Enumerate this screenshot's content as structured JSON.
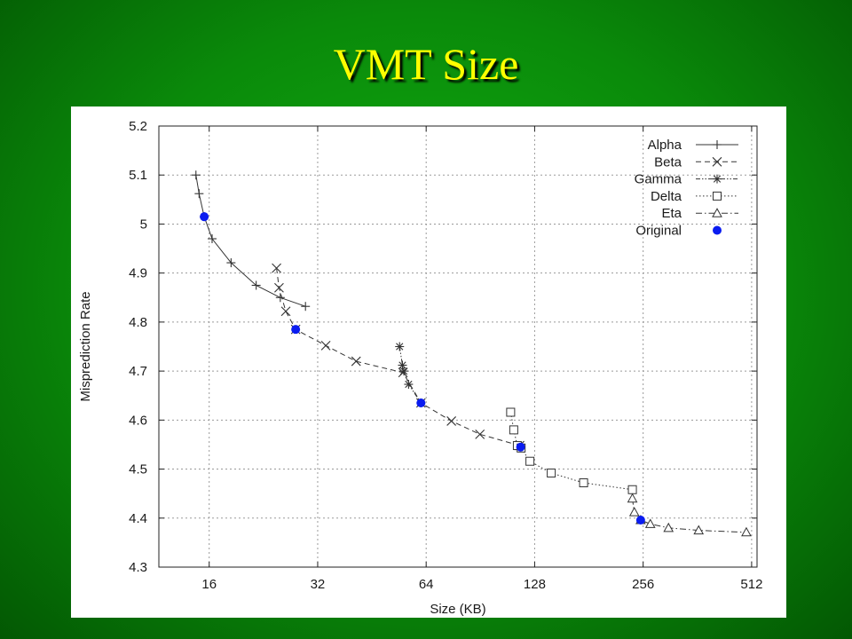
{
  "slide": {
    "title": "VMT Size"
  },
  "chart_data": {
    "type": "line",
    "title": "",
    "xlabel": "Size (KB)",
    "ylabel": "Misprediction Rate",
    "x_scale": "log2",
    "xlim": [
      11.6,
      530
    ],
    "ylim": [
      4.3,
      5.2
    ],
    "x_ticks": [
      {
        "value": 16,
        "label": "16"
      },
      {
        "value": 32,
        "label": "32"
      },
      {
        "value": 64,
        "label": "64"
      },
      {
        "value": 128,
        "label": "128"
      },
      {
        "value": 256,
        "label": "256"
      },
      {
        "value": 512,
        "label": "512"
      }
    ],
    "y_ticks": [
      {
        "value": 4.3,
        "label": "4.3"
      },
      {
        "value": 4.4,
        "label": "4.4"
      },
      {
        "value": 4.5,
        "label": "4.5"
      },
      {
        "value": 4.6,
        "label": "4.6"
      },
      {
        "value": 4.7,
        "label": "4.7"
      },
      {
        "value": 4.8,
        "label": "4.8"
      },
      {
        "value": 4.9,
        "label": "4.9"
      },
      {
        "value": 5.0,
        "label": "5"
      },
      {
        "value": 5.1,
        "label": "5.1"
      },
      {
        "value": 5.2,
        "label": "5.2"
      }
    ],
    "grid": true,
    "legend_position": "top-right",
    "series": [
      {
        "name": "Alpha",
        "marker": "plus",
        "dash": "solid",
        "color": "#333333",
        "points": [
          [
            14.7,
            5.1
          ],
          [
            15.0,
            5.062
          ],
          [
            15.5,
            5.015
          ],
          [
            16.3,
            4.97
          ],
          [
            18.4,
            4.921
          ],
          [
            21.6,
            4.875
          ],
          [
            25.2,
            4.85
          ],
          [
            29.6,
            4.832
          ]
        ]
      },
      {
        "name": "Beta",
        "marker": "x",
        "dash": "dashed",
        "color": "#333333",
        "points": [
          [
            24.6,
            4.91
          ],
          [
            25.0,
            4.87
          ],
          [
            26.1,
            4.822
          ],
          [
            27.8,
            4.785
          ],
          [
            33.7,
            4.752
          ],
          [
            40.9,
            4.72
          ],
          [
            55.2,
            4.697
          ],
          [
            61.9,
            4.635
          ],
          [
            75.2,
            4.598
          ],
          [
            90.2,
            4.571
          ],
          [
            116.3,
            4.548
          ]
        ]
      },
      {
        "name": "Gamma",
        "marker": "asterisk",
        "dash": "dash-dot-dot",
        "color": "#333333",
        "points": [
          [
            54.0,
            4.75
          ],
          [
            55.0,
            4.712
          ],
          [
            55.5,
            4.7
          ],
          [
            57.2,
            4.673
          ],
          [
            61.9,
            4.635
          ]
        ]
      },
      {
        "name": "Delta",
        "marker": "square",
        "dash": "dotted",
        "color": "#333333",
        "points": [
          [
            109.8,
            4.616
          ],
          [
            112.0,
            4.58
          ],
          [
            114.6,
            4.548
          ],
          [
            117.4,
            4.543
          ],
          [
            124.2,
            4.516
          ],
          [
            142.3,
            4.492
          ],
          [
            175.0,
            4.472
          ],
          [
            239.0,
            4.458
          ]
        ]
      },
      {
        "name": "Eta",
        "marker": "triangle",
        "dash": "dash-dot",
        "color": "#333333",
        "points": [
          [
            239.0,
            4.44
          ],
          [
            242.0,
            4.412
          ],
          [
            252.0,
            4.396
          ],
          [
            268.0,
            4.388
          ],
          [
            301.0,
            4.38
          ],
          [
            365.0,
            4.375
          ],
          [
            495.0,
            4.371
          ]
        ]
      },
      {
        "name": "Original",
        "marker": "dot",
        "dash": "none",
        "color": "#0a1cf0",
        "points": [
          [
            15.5,
            5.015
          ],
          [
            27.8,
            4.785
          ],
          [
            61.9,
            4.635
          ],
          [
            117.0,
            4.545
          ],
          [
            252.0,
            4.396
          ]
        ]
      }
    ]
  }
}
